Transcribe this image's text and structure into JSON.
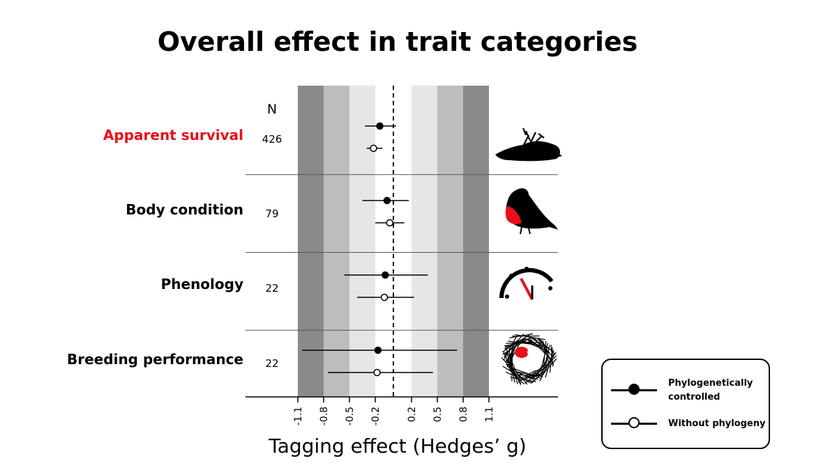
{
  "chart_data": {
    "type": "forest",
    "title": "Overall effect in trait categories",
    "xlabel": "Tagging effect (Hedges’ g)",
    "n_header": "N",
    "xlim": [
      -1.1,
      1.1
    ],
    "xticks": [
      -1.1,
      -0.8,
      -0.5,
      -0.2,
      0.2,
      0.5,
      0.8,
      1.1
    ],
    "xtick_labels": [
      "-1.1",
      "-0.8",
      "-0.5",
      "-0.2",
      "0.2",
      "0.5",
      "0.8",
      "1.1"
    ],
    "reference_line": 0,
    "background_bands": [
      {
        "from": -1.1,
        "to": -0.8,
        "color": "#8a8a8a"
      },
      {
        "from": -0.8,
        "to": -0.5,
        "color": "#bdbdbd"
      },
      {
        "from": -0.5,
        "to": -0.2,
        "color": "#e6e6e6"
      },
      {
        "from": -0.2,
        "to": 0.2,
        "color": "#ffffff"
      },
      {
        "from": 0.2,
        "to": 0.5,
        "color": "#e6e6e6"
      },
      {
        "from": 0.5,
        "to": 0.8,
        "color": "#bdbdbd"
      },
      {
        "from": 0.8,
        "to": 1.1,
        "color": "#8a8a8a"
      }
    ],
    "categories": [
      {
        "label": "Apparent survival",
        "label_color": "#e8101b",
        "n": "426",
        "icon": "dead-bird-icon",
        "phylo": {
          "est": -0.15,
          "lo": -0.32,
          "hi": 0.03
        },
        "nophylo": {
          "est": -0.22,
          "lo": -0.3,
          "hi": -0.12
        }
      },
      {
        "label": "Body condition",
        "label_color": "#000000",
        "n": "79",
        "icon": "robin-icon",
        "phylo": {
          "est": -0.07,
          "lo": -0.35,
          "hi": 0.17
        },
        "nophylo": {
          "est": -0.04,
          "lo": -0.2,
          "hi": 0.12
        }
      },
      {
        "label": "Phenology",
        "label_color": "#000000",
        "n": "22",
        "icon": "clock-icon",
        "phylo": {
          "est": -0.09,
          "lo": -0.56,
          "hi": 0.39
        },
        "nophylo": {
          "est": -0.1,
          "lo": -0.41,
          "hi": 0.23
        }
      },
      {
        "label": "Breeding performance",
        "label_color": "#000000",
        "n": "22",
        "icon": "nest-icon",
        "phylo": {
          "est": -0.17,
          "lo": -1.05,
          "hi": 0.73
        },
        "nophylo": {
          "est": -0.18,
          "lo": -0.75,
          "hi": 0.45
        }
      }
    ],
    "legend": [
      {
        "key": "phylo",
        "label": "Phylogenetically controlled",
        "marker": "filled"
      },
      {
        "key": "nophylo",
        "label": "Without phylogeny",
        "marker": "open"
      }
    ],
    "legend_placement": "bottom-right",
    "colors": {
      "red": "#e8101b",
      "black": "#000000"
    }
  }
}
